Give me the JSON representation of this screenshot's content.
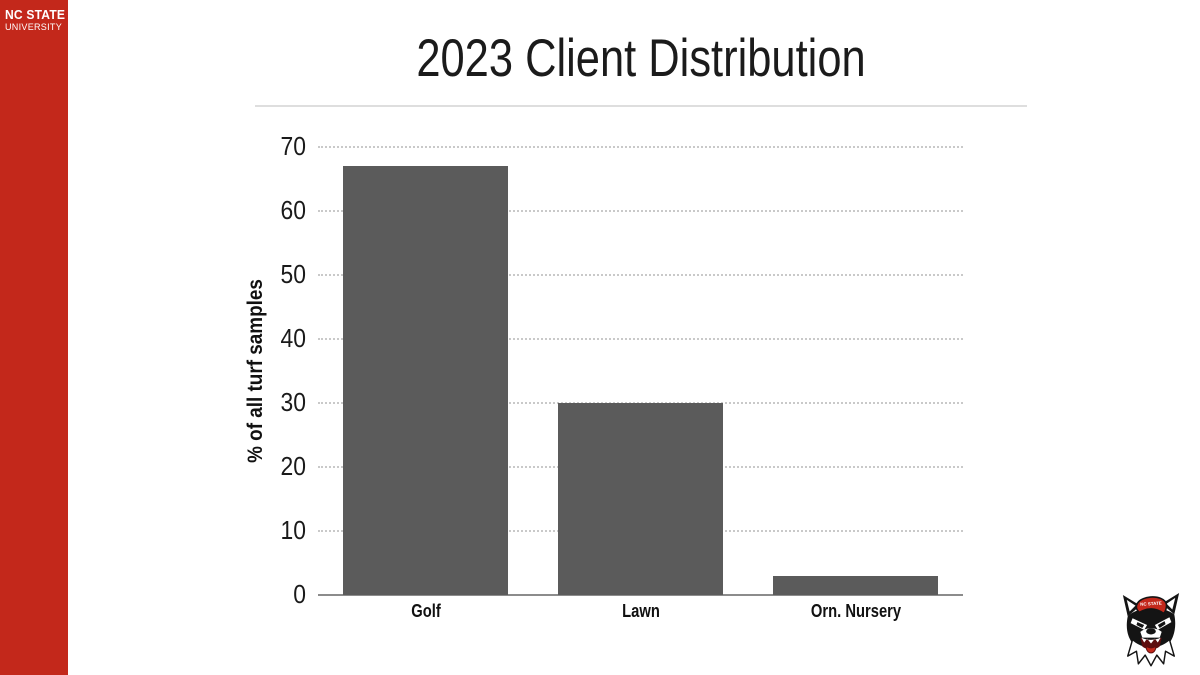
{
  "sidebar": {
    "brand_line1": "NC STATE",
    "brand_line2": "UNIVERSITY",
    "bg_color": "#C3281B"
  },
  "title": "2023 Client Distribution",
  "chart_data": {
    "type": "bar",
    "title": "2023 Client Distribution",
    "categories": [
      "Golf",
      "Lawn",
      "Orn. Nursery"
    ],
    "values": [
      67,
      30,
      3
    ],
    "xlabel": "",
    "ylabel": "% of all turf samples",
    "ylim": [
      0,
      70
    ],
    "yticks": [
      0,
      10,
      20,
      30,
      40,
      50,
      60,
      70
    ],
    "grid": "horizontal-dotted",
    "legend": null,
    "bar_color": "#5b5b5b"
  },
  "footer_logo": "nc-state-wolf-head-logo",
  "colors": {
    "brand_red": "#C3281B",
    "bar_gray": "#5b5b5b",
    "axis_gray": "#8c8c8c",
    "gridline_gray": "#c9c9c9"
  }
}
